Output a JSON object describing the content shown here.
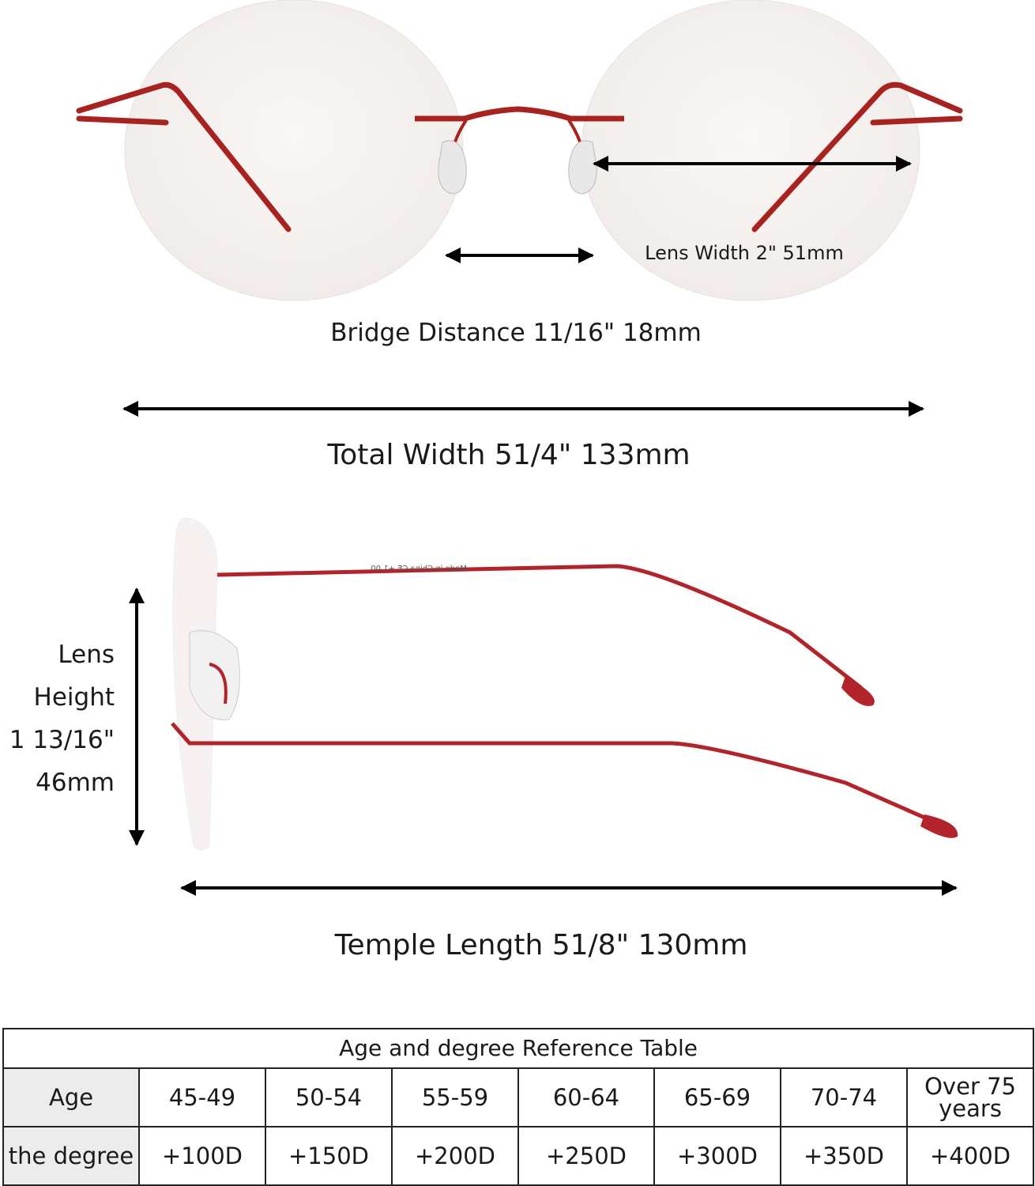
{
  "front_view": {
    "lens_width": "Lens Width 2\" 51mm",
    "bridge_distance": "Bridge Distance 11/16\" 18mm",
    "total_width": "Total Width 51/4\" 133mm"
  },
  "side_view": {
    "lens_height": [
      "Lens",
      "Height",
      "1 13/16\"",
      "46mm"
    ],
    "temple_length": "Temple Length 51/8\" 130mm",
    "temple_print": "Made in China CE +1.00"
  },
  "table": {
    "title": "Age and degree Reference Table",
    "rows": [
      [
        "Age",
        "45-49",
        "50-54",
        "55-59",
        "60-64",
        "65-69",
        "70-74",
        "Over 75 years"
      ],
      [
        "the degree",
        "+100D",
        "+150D",
        "+200D",
        "+250D",
        "+300D",
        "+350D",
        "+400D"
      ]
    ]
  }
}
